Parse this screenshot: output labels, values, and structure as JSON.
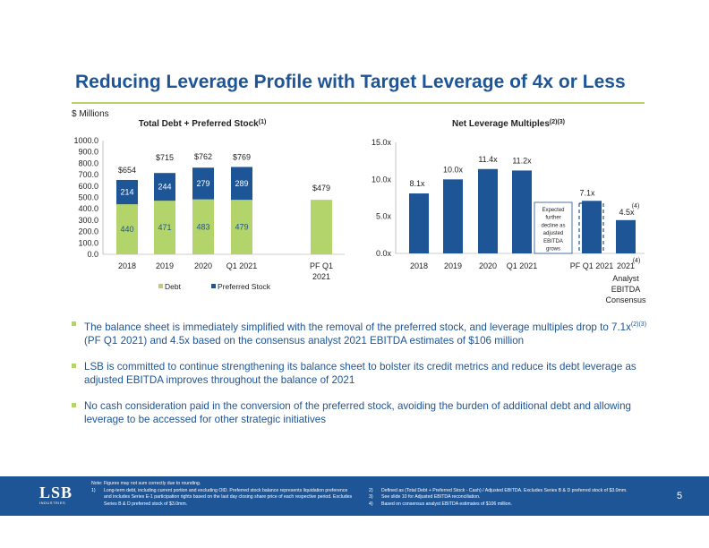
{
  "title": "Reducing Leverage Profile with Target Leverage of 4x or Less",
  "units_label": "$ Millions",
  "chart_data": [
    {
      "type": "bar",
      "stacked": true,
      "title": "Total Debt + Preferred Stock",
      "title_sup": "(1)",
      "categories": [
        "2018",
        "2019",
        "2020",
        "Q1 2021",
        "PF Q1 2021"
      ],
      "series": [
        {
          "name": "Debt",
          "color": "#b3d36b",
          "values": [
            440,
            471,
            483,
            479,
            479
          ]
        },
        {
          "name": "Preferred Stock",
          "color": "#1e5597",
          "values": [
            214,
            244,
            279,
            289,
            0
          ]
        }
      ],
      "segment_labels": {
        "Debt": [
          "440",
          "471",
          "483",
          "479",
          ""
        ],
        "Preferred Stock": [
          "214",
          "244",
          "279",
          "289",
          ""
        ]
      },
      "totals": [
        "$654",
        "$715",
        "$762",
        "$769",
        "$479"
      ],
      "ylim": [
        0,
        1000
      ],
      "yticks": [
        "0.0",
        "100.0",
        "200.0",
        "300.0",
        "400.0",
        "500.0",
        "600.0",
        "700.0",
        "800.0",
        "900.0",
        "1000.0"
      ],
      "legend_placement": "bottom",
      "grid": false
    },
    {
      "type": "bar",
      "title": "Net Leverage Multiples",
      "title_sup": "(2)(3)",
      "categories": [
        "2018",
        "2019",
        "2020",
        "Q1 2021",
        "PF Q1 2021",
        "2021 Analyst EBITDA Consensus"
      ],
      "category_sup": [
        "",
        "",
        "",
        "",
        "",
        "(4)"
      ],
      "values": [
        8.1,
        10.0,
        11.4,
        11.2,
        7.1,
        4.5
      ],
      "value_labels": [
        "8.1x",
        "10.0x",
        "11.4x",
        "11.2x",
        "7.1x",
        "4.5x"
      ],
      "value_label_sup": [
        "",
        "",
        "",
        "",
        "",
        "(4)"
      ],
      "color": "#1e5597",
      "ylim": [
        0,
        15
      ],
      "yticks": [
        "0.0x",
        "5.0x",
        "10.0x",
        "15.0x"
      ],
      "annotation": "Expected further decline as adjusted EBITDA grows",
      "grid": false
    }
  ],
  "bullets": [
    {
      "text": "The balance sheet is immediately simplified with the removal of the preferred stock, and leverage multiples drop to 7.1x",
      "sup": "(2)(3)",
      "text2": " (PF Q1 2021) and 4.5x based on the consensus analyst 2021 EBITDA estimates of $106 million"
    },
    {
      "text": "LSB is committed to continue strengthening its balance sheet to bolster its credit metrics and reduce its debt leverage as adjusted EBITDA improves throughout the balance of 2021"
    },
    {
      "text": "No cash consideration paid in the conversion of the preferred stock, avoiding the burden of additional debt and allowing leverage to be accessed for other strategic initiatives"
    }
  ],
  "footer": {
    "logo_text": "LSB",
    "logo_sub": "INDUSTRIES",
    "note_header": "Note: Figures may not sum correctly due to rounding.",
    "notes_left": [
      {
        "num": "1)",
        "text": "Long-term debt, including current portion and excluding OID. Preferred stock balance represents liquidation preference"
      },
      {
        "num": "",
        "text": "and includes Series E-1 participation rights based on the last day closing share price of each respective period. Excludes"
      },
      {
        "num": "",
        "text": "Series B & D preferred stock of $3.0mm."
      }
    ],
    "notes_right": [
      {
        "num": "2)",
        "text": "Defined as (Total Debt + Preferred Stock - Cash) / Adjusted EBITDA. Excludes Series B & D preferred stock of $3.0mm."
      },
      {
        "num": "3)",
        "text": "See slide 10 for Adjusted EBITDA reconciliation."
      },
      {
        "num": "4)",
        "text": "Based on consensus analyst EBITDA estimates of $106 million."
      }
    ],
    "page_number": "5"
  }
}
